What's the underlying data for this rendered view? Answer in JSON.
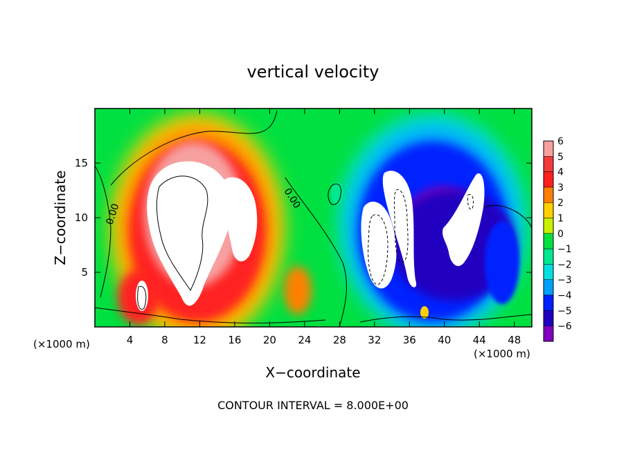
{
  "chart_data": {
    "type": "heatmap",
    "title": "vertical velocity",
    "xlabel": "X−coordinate",
    "ylabel": "Z−coordinate",
    "x_unit_left": "(×1000 m)",
    "x_unit_right": "(×1000 m)",
    "footer": "CONTOUR INTERVAL = 8.000E+00",
    "xlim": [
      0,
      50
    ],
    "ylim": [
      0,
      20
    ],
    "x_ticks": [
      4,
      8,
      12,
      16,
      20,
      24,
      28,
      32,
      36,
      40,
      44,
      48
    ],
    "y_ticks": [
      5,
      10,
      15
    ],
    "colorbar": {
      "levels": [
        6,
        5,
        4,
        3,
        2,
        1,
        0,
        -1,
        -2,
        -3,
        -4,
        -5,
        -6
      ],
      "labels": [
        "6",
        "5",
        "4",
        "3",
        "2",
        "1",
        "0",
        "−1",
        "−2",
        "−3",
        "−4",
        "−5",
        "−6"
      ],
      "colors": [
        "#f7a0a0",
        "#f23a3a",
        "#ff2020",
        "#ff8000",
        "#ffd000",
        "#c8f000",
        "#00e040",
        "#00e890",
        "#00e0e0",
        "#00a0ff",
        "#0020ff",
        "#2000c0",
        "#8000c0"
      ]
    },
    "contour_labels": [
      "0.00",
      "0.00"
    ],
    "features": [
      {
        "kind": "updraft",
        "x": 11,
        "z": 10,
        "value": 6
      },
      {
        "kind": "updraft",
        "x": 15,
        "z": 11,
        "value": 6
      },
      {
        "kind": "downdraft",
        "x": 35,
        "z": 10,
        "value": -6
      },
      {
        "kind": "downdraft",
        "x": 42,
        "z": 9,
        "value": -6
      }
    ]
  }
}
